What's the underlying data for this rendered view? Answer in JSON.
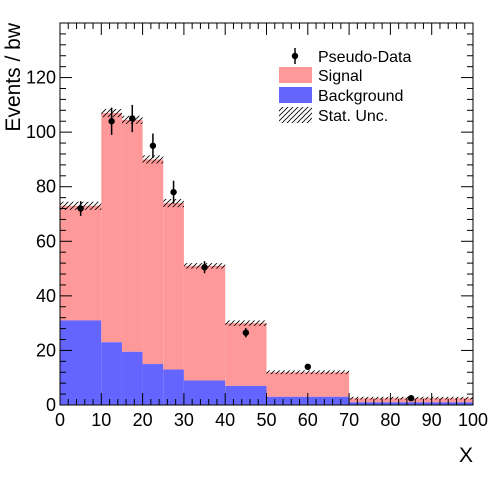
{
  "chart_data": {
    "type": "bar",
    "xlabel": "X",
    "ylabel": "Events / bw",
    "xlim": [
      0,
      100
    ],
    "ylim": [
      0,
      140
    ],
    "xticks": [
      0,
      10,
      20,
      30,
      40,
      50,
      60,
      70,
      80,
      90,
      100
    ],
    "yticks": [
      0,
      20,
      40,
      60,
      80,
      100,
      120
    ],
    "bin_edges": [
      0,
      10,
      15,
      20,
      25,
      30,
      40,
      50,
      70,
      100
    ],
    "series": [
      {
        "name": "Background",
        "color": "#6464ff",
        "values": [
          31,
          23,
          19.5,
          15,
          13,
          9,
          7,
          3,
          1
        ]
      },
      {
        "name": "Signal",
        "color": "#ff9999",
        "values": [
          42,
          84,
          85,
          75,
          61,
          42,
          23,
          9,
          1.5
        ]
      }
    ],
    "stat_unc": {
      "name": "Stat. Unc.",
      "half_width": [
        1.5,
        1.5,
        1.5,
        1.5,
        1.5,
        1,
        1,
        0.7,
        0.5
      ]
    },
    "pseudo_data": {
      "name": "Pseudo-Data",
      "x": [
        5,
        12.5,
        17.5,
        22.5,
        27.5,
        35,
        45,
        60,
        85
      ],
      "y": [
        72,
        104,
        105,
        95,
        78,
        50.5,
        26.5,
        14,
        2.5
      ],
      "err": [
        2.7,
        5,
        5,
        4.5,
        4.2,
        2.2,
        1.7,
        0.8,
        0.3
      ]
    },
    "legend": {
      "placement": "top-right",
      "entries": [
        "Pseudo-Data",
        "Signal",
        "Background",
        "Stat. Unc."
      ]
    }
  }
}
